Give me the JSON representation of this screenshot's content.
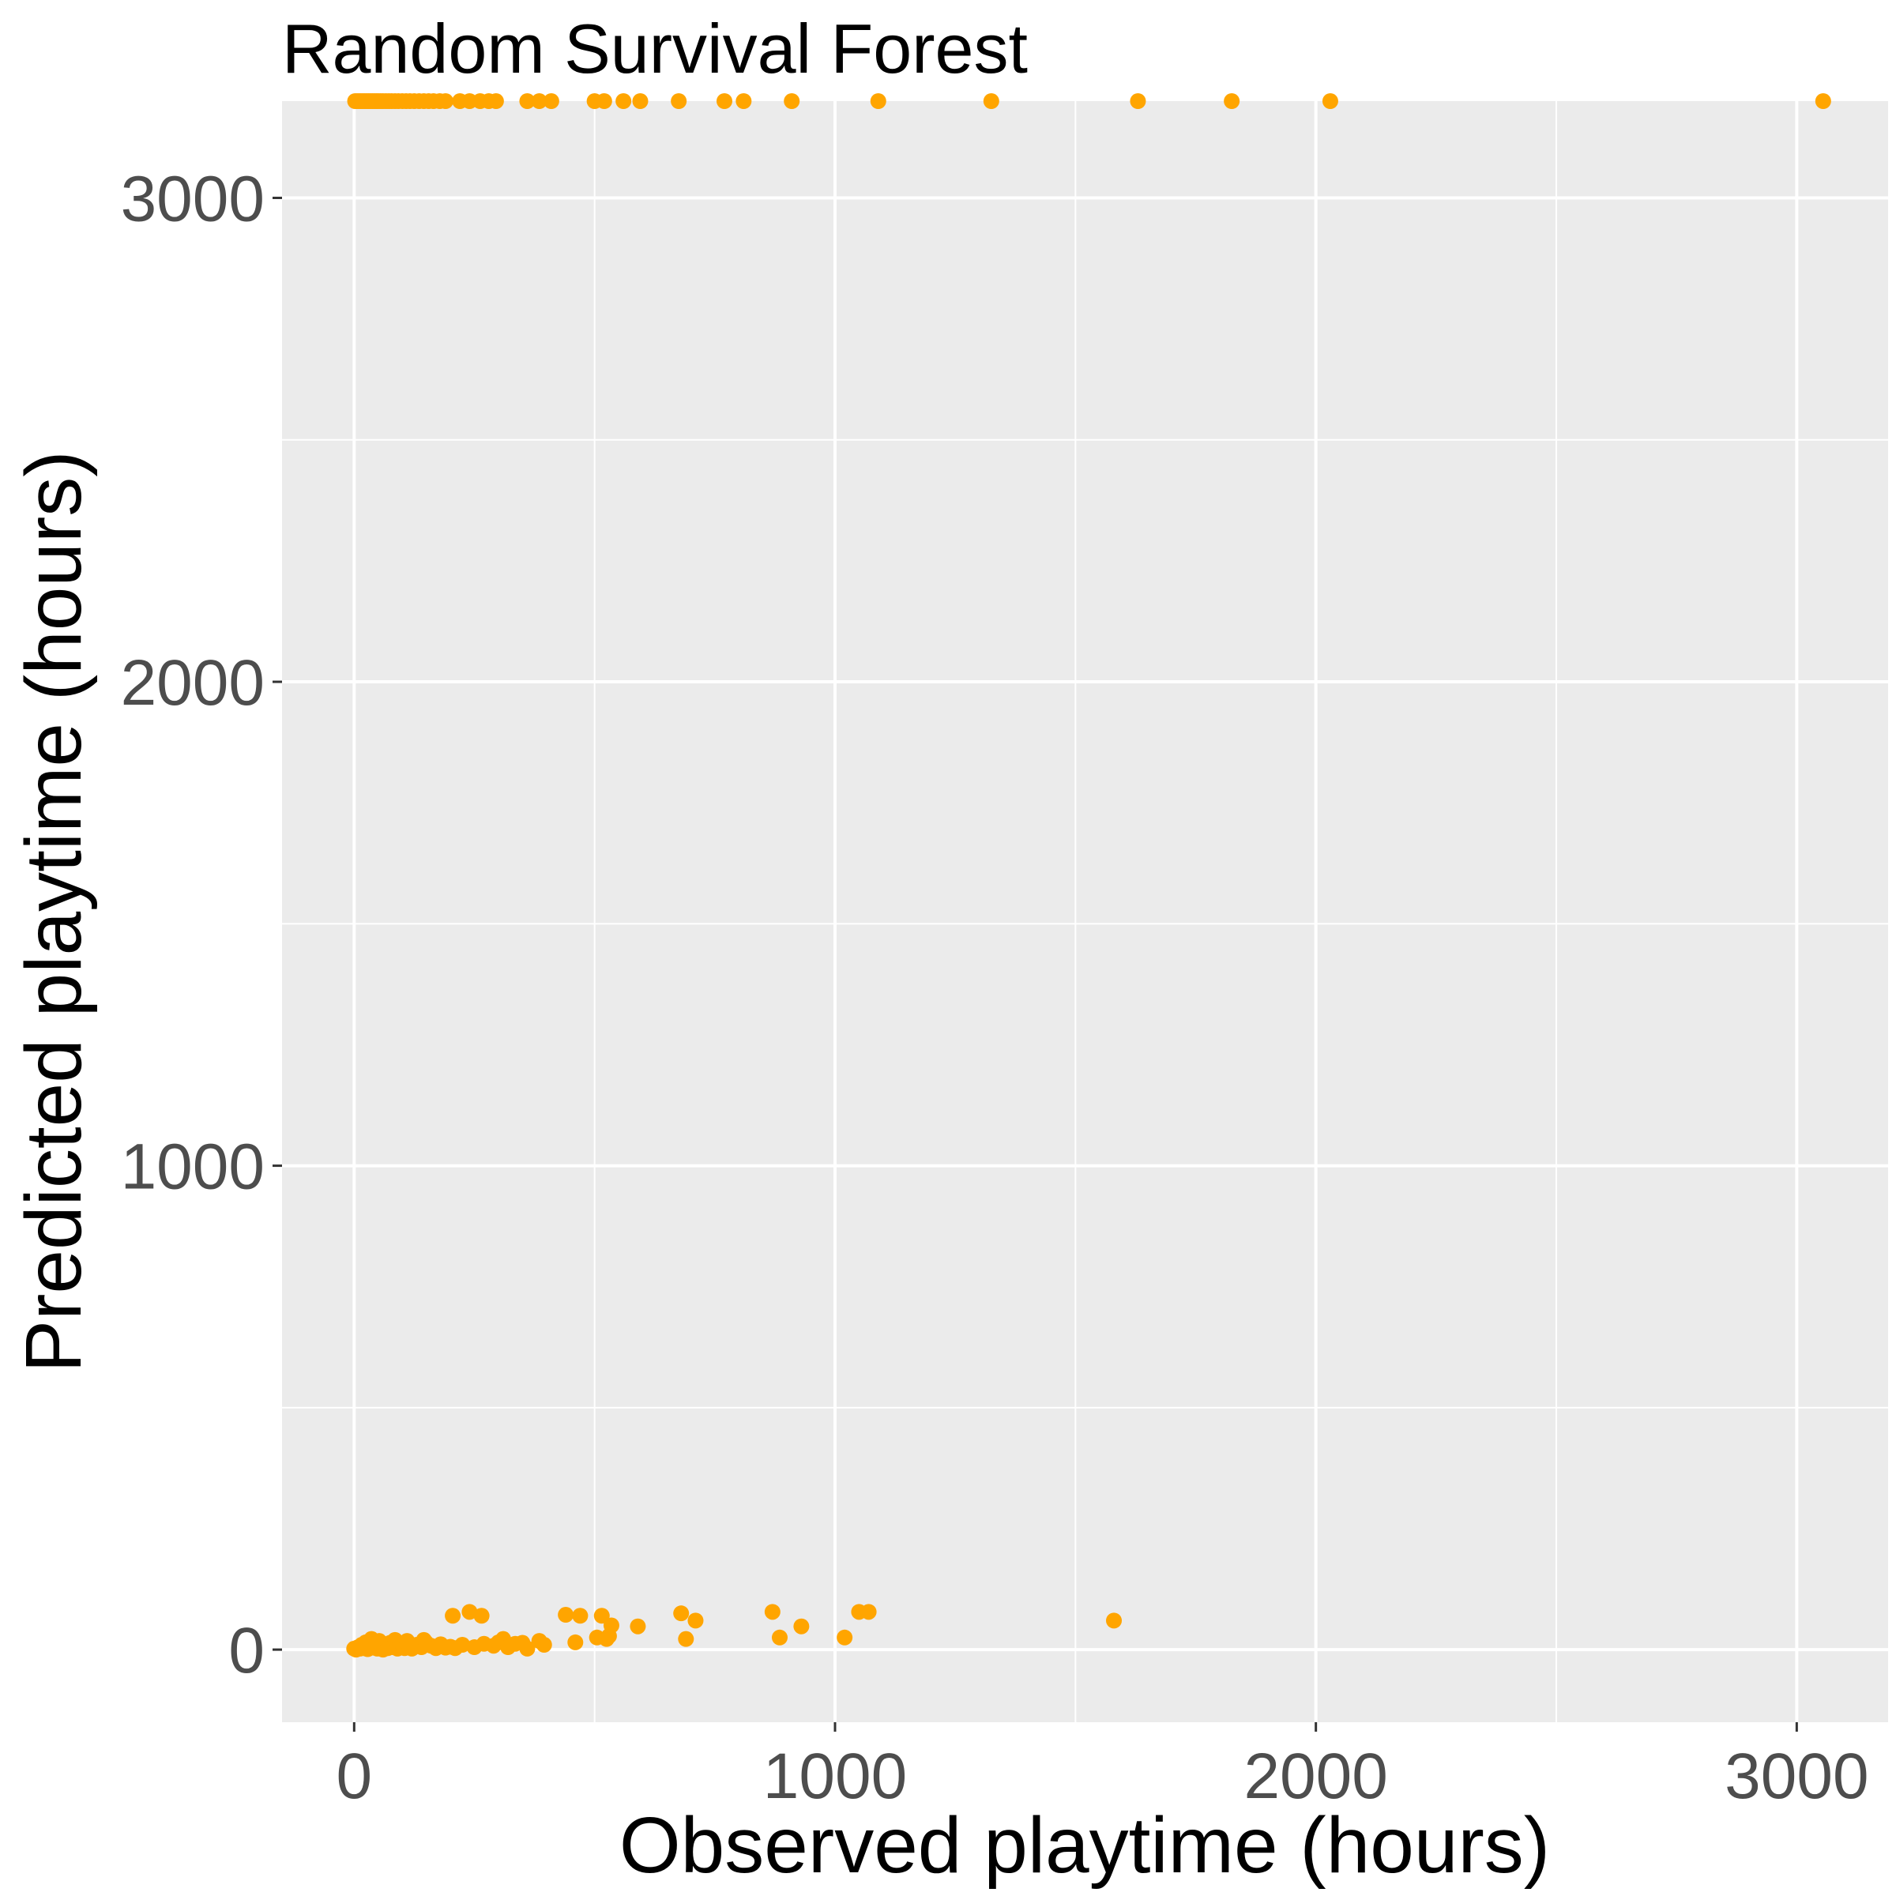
{
  "chart_data": {
    "type": "scatter",
    "title": "Random Survival Forest",
    "xlabel": "Observed playtime (hours)",
    "ylabel": "Predicted playtime (hours)",
    "xlim": [
      -150,
      3190
    ],
    "ylim": [
      -150,
      3200
    ],
    "x_ticks": [
      0,
      1000,
      2000,
      3000
    ],
    "y_ticks": [
      0,
      1000,
      2000,
      3000
    ],
    "x_minor": [
      500,
      1500,
      2500
    ],
    "y_minor": [
      500,
      1500,
      2500
    ],
    "grid": true,
    "legend": "none",
    "colors": {
      "panel": "#ebebeb",
      "grid": "#ffffff",
      "point": "#ffa500",
      "tick_text": "#4d4d4d",
      "tick_mark": "#333333"
    },
    "series": [
      {
        "points": [
          [
            2,
            3200
          ],
          [
            6,
            3200
          ],
          [
            10,
            3200
          ],
          [
            14,
            3200
          ],
          [
            18,
            3200
          ],
          [
            22,
            3200
          ],
          [
            26,
            3200
          ],
          [
            30,
            3200
          ],
          [
            34,
            3200
          ],
          [
            38,
            3200
          ],
          [
            42,
            3200
          ],
          [
            46,
            3200
          ],
          [
            50,
            3200
          ],
          [
            55,
            3200
          ],
          [
            60,
            3200
          ],
          [
            66,
            3200
          ],
          [
            72,
            3200
          ],
          [
            78,
            3200
          ],
          [
            85,
            3200
          ],
          [
            92,
            3200
          ],
          [
            100,
            3200
          ],
          [
            108,
            3200
          ],
          [
            116,
            3200
          ],
          [
            125,
            3200
          ],
          [
            135,
            3200
          ],
          [
            145,
            3200
          ],
          [
            155,
            3200
          ],
          [
            165,
            3200
          ],
          [
            178,
            3200
          ],
          [
            190,
            3200
          ],
          [
            220,
            3200
          ],
          [
            240,
            3200
          ],
          [
            262,
            3200
          ],
          [
            280,
            3200
          ],
          [
            295,
            3200
          ],
          [
            360,
            3200
          ],
          [
            385,
            3200
          ],
          [
            410,
            3200
          ],
          [
            500,
            3200
          ],
          [
            520,
            3200
          ],
          [
            560,
            3200
          ],
          [
            595,
            3200
          ],
          [
            675,
            3200
          ],
          [
            770,
            3200
          ],
          [
            810,
            3200
          ],
          [
            910,
            3200
          ],
          [
            1090,
            3200
          ],
          [
            1325,
            3200
          ],
          [
            1630,
            3200
          ],
          [
            1825,
            3200
          ],
          [
            2030,
            3200
          ],
          [
            3055,
            3200
          ],
          [
            0,
            2
          ],
          [
            4,
            0
          ],
          [
            8,
            5
          ],
          [
            12,
            2
          ],
          [
            16,
            10
          ],
          [
            20,
            3
          ],
          [
            24,
            15
          ],
          [
            28,
            1
          ],
          [
            32,
            8
          ],
          [
            36,
            22
          ],
          [
            40,
            4
          ],
          [
            44,
            12
          ],
          [
            48,
            2
          ],
          [
            52,
            18
          ],
          [
            56,
            6
          ],
          [
            60,
            0
          ],
          [
            65,
            10
          ],
          [
            70,
            3
          ],
          [
            75,
            14
          ],
          [
            80,
            5
          ],
          [
            85,
            20
          ],
          [
            90,
            2
          ],
          [
            95,
            8
          ],
          [
            100,
            12
          ],
          [
            105,
            3
          ],
          [
            110,
            18
          ],
          [
            115,
            6
          ],
          [
            120,
            2
          ],
          [
            130,
            10
          ],
          [
            140,
            5
          ],
          [
            145,
            20
          ],
          [
            150,
            14
          ],
          [
            160,
            8
          ],
          [
            170,
            3
          ],
          [
            180,
            11
          ],
          [
            190,
            4
          ],
          [
            200,
            6
          ],
          [
            205,
            70
          ],
          [
            210,
            3
          ],
          [
            225,
            10
          ],
          [
            240,
            78
          ],
          [
            250,
            5
          ],
          [
            265,
            70
          ],
          [
            270,
            12
          ],
          [
            290,
            8
          ],
          [
            300,
            15
          ],
          [
            310,
            22
          ],
          [
            320,
            5
          ],
          [
            335,
            12
          ],
          [
            350,
            14
          ],
          [
            360,
            2
          ],
          [
            385,
            18
          ],
          [
            395,
            10
          ],
          [
            440,
            72
          ],
          [
            460,
            15
          ],
          [
            470,
            70
          ],
          [
            505,
            25
          ],
          [
            515,
            70
          ],
          [
            525,
            22
          ],
          [
            530,
            28
          ],
          [
            535,
            50
          ],
          [
            590,
            48
          ],
          [
            680,
            75
          ],
          [
            690,
            22
          ],
          [
            710,
            60
          ],
          [
            870,
            78
          ],
          [
            885,
            25
          ],
          [
            930,
            48
          ],
          [
            1020,
            25
          ],
          [
            1050,
            78
          ],
          [
            1070,
            78
          ],
          [
            1580,
            60
          ]
        ]
      }
    ]
  }
}
